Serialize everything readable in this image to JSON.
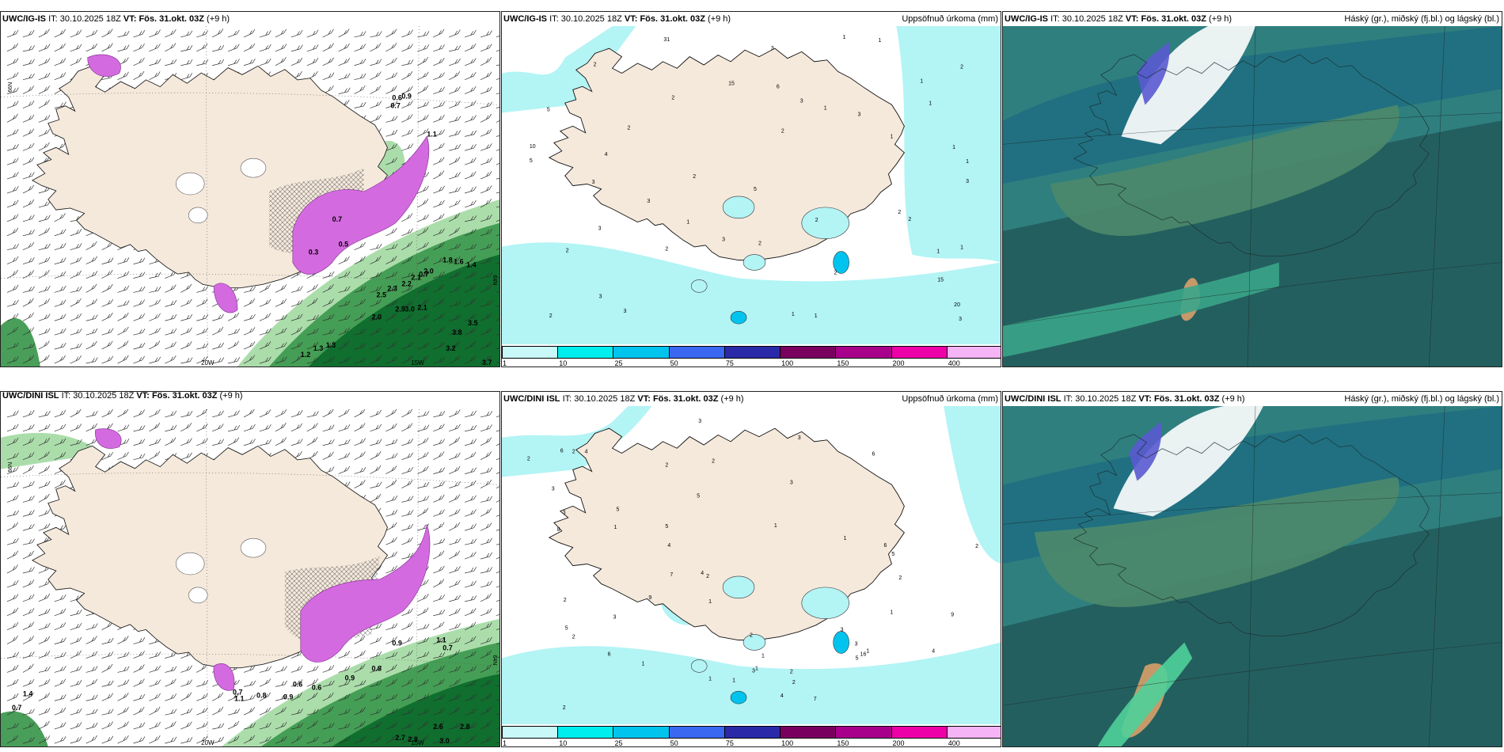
{
  "panels": [
    {
      "model": "UWC/IG-IS",
      "it_label": "IT:",
      "it": "30.10.2025 18Z",
      "vt_label": "VT:",
      "vt": "Fös. 31.okt. 03Z",
      "lead": "(+9 h)",
      "right_title": ""
    },
    {
      "model": "UWC/IG-IS",
      "it_label": "IT:",
      "it": "30.10.2025 18Z",
      "vt_label": "VT:",
      "vt": "Fös. 31.okt. 03Z",
      "lead": "(+9 h)",
      "right_title": "Uppsöfnuð úrkoma (mm)"
    },
    {
      "model": "UWC/IG-IS",
      "it_label": "IT:",
      "it": "30.10.2025 18Z",
      "vt_label": "VT:",
      "vt": "Fös. 31.okt. 03Z",
      "lead": "(+9 h)",
      "right_title": "Háský (gr.), miðský (fj.bl.) og lágský (bl.)"
    },
    {
      "model": "UWC/DINI ISL",
      "it_label": "IT:",
      "it": "30.10.2025 18Z",
      "vt_label": "VT:",
      "vt": "Fös. 31.okt. 03Z",
      "lead": "(+9 h)",
      "right_title": ""
    },
    {
      "model": "UWC/DINI ISL",
      "it_label": "IT:",
      "it": "30.10.2025 18Z",
      "vt_label": "VT:",
      "vt": "Fös. 31.okt. 03Z",
      "lead": "(+9 h)",
      "right_title": "Uppsöfnuð úrkoma (mm)"
    },
    {
      "model": "UWC/DINI ISL",
      "it_label": "IT:",
      "it": "30.10.2025 18Z",
      "vt_label": "VT:",
      "vt": "Fös. 31.okt. 03Z",
      "lead": "(+9 h)",
      "right_title": "Háský (gr.), miðský (fj.bl.) og lágský (bl.)"
    }
  ],
  "axis_labels": {
    "lon_20w": "20W",
    "lon_15w": "15W",
    "lat_66n": "66N",
    "lat_64n": "64N"
  },
  "colorbar": {
    "ticks": [
      "1",
      "10",
      "25",
      "50",
      "75",
      "100",
      "150",
      "200",
      "400"
    ],
    "colors": [
      "#c9f8f8",
      "#00eeee",
      "#00c4ee",
      "#3a68f0",
      "#2a2aa8",
      "#7a0060",
      "#a8008a",
      "#ee00a8",
      "#f5b4f5"
    ]
  },
  "colors": {
    "land": "#f5e9dc",
    "sea_precip": "#b3f4f5",
    "dark_green": "#0e6b2c",
    "mid_green": "#3f9a50",
    "light_green": "#a6dba6",
    "magenta": "#d46ae0",
    "cloud_teal": "#2f7f7f",
    "cloud_dark": "#235c5c",
    "cloud_green": "#4c8a6c",
    "cloud_white": "#ffffff"
  },
  "labels_precip_ig": [
    "2",
    "1",
    "1",
    "1",
    "2",
    "1",
    "1",
    "1",
    "1",
    "1",
    "2",
    "2",
    "1",
    "2",
    "2",
    "5",
    "3",
    "10",
    "31",
    "15",
    "20",
    "6",
    "3",
    "3",
    "2",
    "1",
    "2",
    "2",
    "1",
    "2",
    "3",
    "3",
    "3",
    "3",
    "4",
    "5",
    "3",
    "2",
    "1",
    "2",
    "1",
    "5",
    "3",
    "2",
    "15",
    "2",
    "3",
    "3"
  ],
  "labels_precip_dini": [
    "1",
    "1",
    "1",
    "2",
    "2",
    "2",
    "1",
    "2",
    "6",
    "5",
    "3",
    "4",
    "1",
    "7",
    "6",
    "2",
    "3",
    "16",
    "9",
    "5",
    "4",
    "2",
    "1",
    "4",
    "2",
    "1",
    "3",
    "4",
    "2",
    "5",
    "6",
    "3",
    "1",
    "2",
    "5",
    "5",
    "2",
    "1",
    "2",
    "9",
    "2",
    "6",
    "7",
    "5",
    "8",
    "3",
    "3",
    "1",
    "3",
    "2",
    "3",
    "3",
    "4",
    "1"
  ],
  "labels_wind_ig": [
    "0.6",
    "0.9",
    "0.7",
    "1.1",
    "1.8",
    "1.6",
    "1.4",
    "0.7",
    "2.0",
    "2.1",
    "2.2",
    "2.3",
    "2.5",
    "2.0",
    "2.9",
    "3.0",
    "2.1",
    "3.5",
    "3.8",
    "3.2",
    "3.7",
    "1.2",
    "1.3",
    "1.3",
    "0.3",
    "0.5",
    "0.7"
  ],
  "labels_wind_dini": [
    "0.9",
    "1.1",
    "0.7",
    "0.9",
    "0.8",
    "0.6",
    "0.6",
    "0.9",
    "0.8",
    "2.7",
    "2.8",
    "2.6",
    "2.8",
    "3.0",
    "1.4",
    "0.7",
    "0.7",
    "1.1"
  ]
}
